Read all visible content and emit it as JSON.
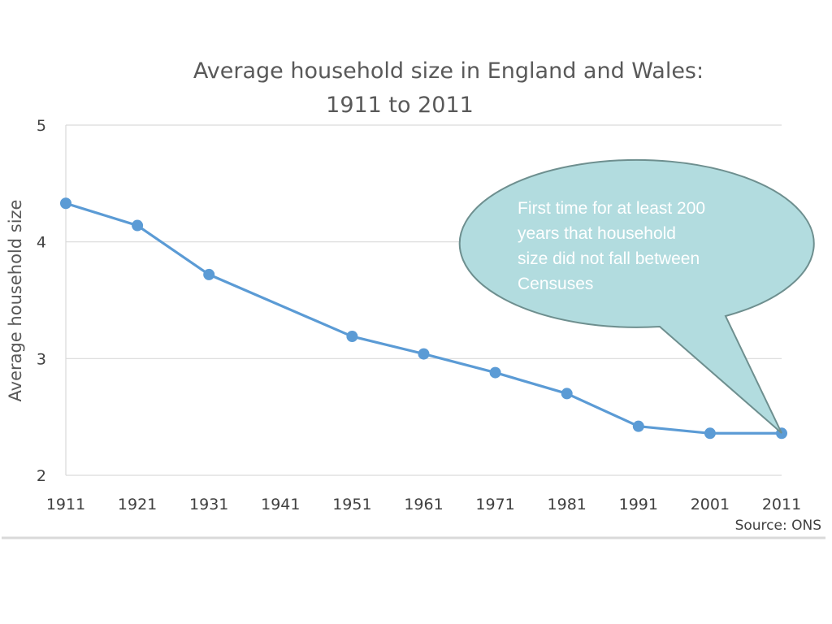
{
  "chart_data": {
    "type": "line",
    "title": [
      "Average household size in England and Wales:",
      "1911 to 2011"
    ],
    "xlabel": "",
    "ylabel": "Average household size",
    "x_tick_labels": [
      "1911",
      "1921",
      "1931",
      "1941",
      "1951",
      "1961",
      "1971",
      "1981",
      "1991",
      "2001",
      "2011"
    ],
    "y_tick_labels": [
      "2",
      "3",
      "4",
      "5"
    ],
    "xlim": [
      1911,
      2011
    ],
    "ylim": [
      2,
      5
    ],
    "grid": "horizontal",
    "series": [
      {
        "x": [
          1911,
          1921,
          1931,
          1951,
          1961,
          1971,
          1981,
          1991,
          2001,
          2011
        ],
        "values": [
          4.33,
          4.14,
          3.72,
          3.19,
          3.04,
          2.88,
          2.7,
          2.42,
          2.36,
          2.36
        ]
      }
    ],
    "source": "Source: ONS",
    "annotation": [
      "First time for at least 200",
      "years that household",
      "size did not fall between",
      "Censuses"
    ]
  },
  "colors": {
    "series": "#5b9bd5",
    "grid": "#d9d9d9",
    "callout_fill": "#b2dcdf",
    "callout_stroke": "#6e8f8f",
    "frame": "#d9d9d9"
  }
}
